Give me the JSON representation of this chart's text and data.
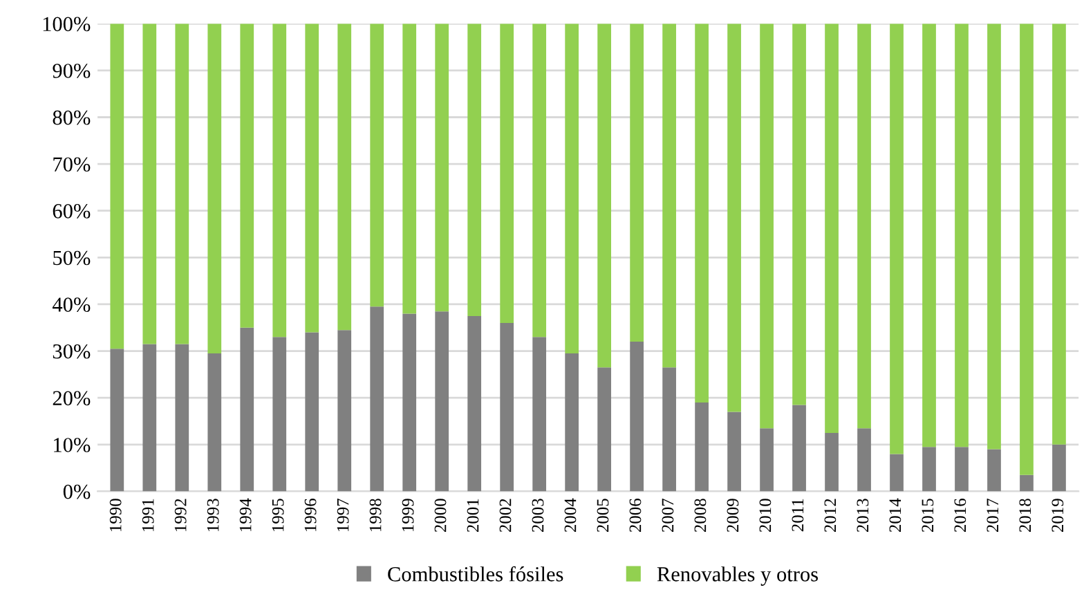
{
  "chart_data": {
    "type": "bar",
    "stacked": true,
    "categories": [
      "1990",
      "1991",
      "1992",
      "1993",
      "1994",
      "1995",
      "1996",
      "1997",
      "1998",
      "1999",
      "2000",
      "2001",
      "2002",
      "2003",
      "2004",
      "2005",
      "2006",
      "2007",
      "2008",
      "2009",
      "2010",
      "2011",
      "2012",
      "2013",
      "2014",
      "2015",
      "2016",
      "2017",
      "2018",
      "2019"
    ],
    "series": [
      {
        "name": "Combustibles fósiles",
        "color": "#808080",
        "values": [
          30.5,
          31.5,
          31.5,
          29.5,
          35,
          33,
          34,
          34.5,
          39.5,
          38,
          38.5,
          37.5,
          36,
          33,
          29.5,
          26.5,
          32,
          26.5,
          19,
          17,
          13.5,
          18.5,
          12.5,
          13.5,
          8,
          9.5,
          9.5,
          9,
          3.5,
          10
        ]
      },
      {
        "name": "Renovables y otros",
        "color": "#92d050",
        "values": [
          69.5,
          68.5,
          68.5,
          70.5,
          65,
          67,
          66,
          65.5,
          60.5,
          62,
          61.5,
          62.5,
          64,
          67,
          70.5,
          73.5,
          68,
          73.5,
          81,
          83,
          86.5,
          81.5,
          87.5,
          86.5,
          92,
          90.5,
          90.5,
          91,
          96.5,
          90
        ]
      }
    ],
    "ylim": [
      0,
      100
    ],
    "yticks": [
      {
        "value": 0,
        "label": "0%"
      },
      {
        "value": 10,
        "label": "10%"
      },
      {
        "value": 20,
        "label": "20%"
      },
      {
        "value": 30,
        "label": "30%"
      },
      {
        "value": 40,
        "label": "40%"
      },
      {
        "value": 50,
        "label": "50%"
      },
      {
        "value": 60,
        "label": "60%"
      },
      {
        "value": 70,
        "label": "70%"
      },
      {
        "value": 80,
        "label": "80%"
      },
      {
        "value": 90,
        "label": "90%"
      },
      {
        "value": 100,
        "label": "100%"
      }
    ],
    "grid": "y",
    "legend": "bottom"
  }
}
